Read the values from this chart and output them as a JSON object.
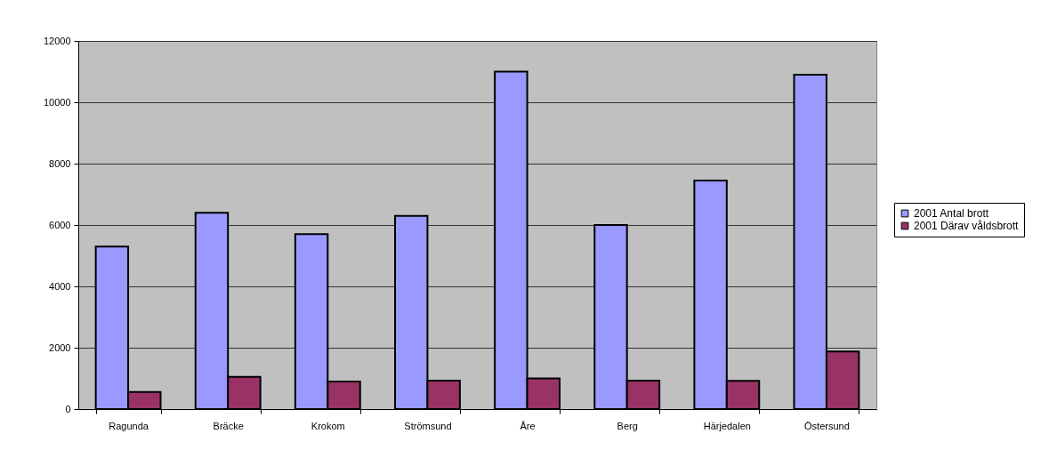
{
  "chart_data": {
    "type": "bar",
    "categories": [
      "Ragunda",
      "Bräcke",
      "Krokom",
      "Strömsund",
      "Åre",
      "Berg",
      "Härjedalen",
      "Östersund"
    ],
    "series": [
      {
        "name": "2001 Antal brott",
        "color": "#9999ff",
        "values": [
          5300,
          6400,
          5700,
          6300,
          11000,
          6000,
          7450,
          10900
        ]
      },
      {
        "name": "2001 Därav våldsbrott",
        "color": "#993366",
        "values": [
          560,
          1050,
          900,
          930,
          1000,
          930,
          920,
          1880
        ]
      }
    ],
    "ylim": [
      0,
      12000
    ],
    "yticks": [
      0,
      2000,
      4000,
      6000,
      8000,
      10000,
      12000
    ],
    "grid": "y",
    "legend": "right"
  }
}
